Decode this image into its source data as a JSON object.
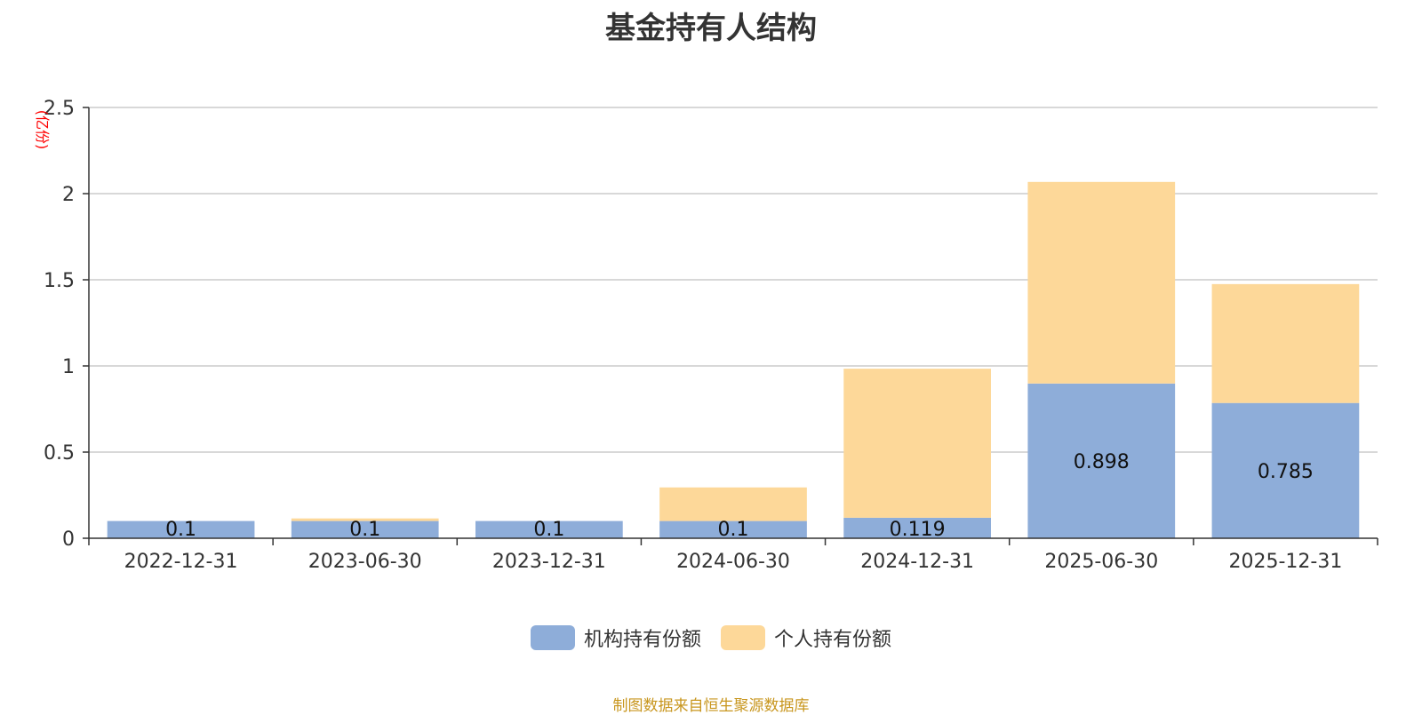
{
  "chart_data": {
    "type": "bar",
    "stacked": true,
    "title": "基金持有人结构",
    "ylabel": "(亿份)",
    "xlabel": "",
    "ylim": [
      0,
      2.5
    ],
    "yticks": [
      0,
      0.5,
      1,
      1.5,
      2,
      2.5
    ],
    "ytick_labels": [
      "0",
      "0.5",
      "1",
      "1.5",
      "2",
      "2.5"
    ],
    "grid": true,
    "legend_position": "bottom",
    "categories": [
      "2022-12-31",
      "2023-06-30",
      "2023-12-31",
      "2024-06-30",
      "2024-12-31",
      "2025-06-30",
      "2025-12-31"
    ],
    "series": [
      {
        "name": "机构持有份额",
        "color": "#8eadd9",
        "values": [
          0.1,
          0.1,
          0.1,
          0.1,
          0.119,
          0.898,
          0.785
        ],
        "labels": [
          "0.1",
          "0.1",
          "0.1",
          "0.1",
          "0.119",
          "0.898",
          "0.785"
        ]
      },
      {
        "name": "个人持有份额",
        "color": "#fdd899",
        "values": [
          0.0,
          0.015,
          0.0,
          0.195,
          0.865,
          1.17,
          0.69
        ],
        "labels": []
      }
    ]
  },
  "source_note": "制图数据来自恒生聚源数据库",
  "colors": {
    "axis": "#333333",
    "grid": "#cccccc",
    "ylabel": "#ff0000",
    "source": "#c8961e",
    "title": "#333333"
  }
}
